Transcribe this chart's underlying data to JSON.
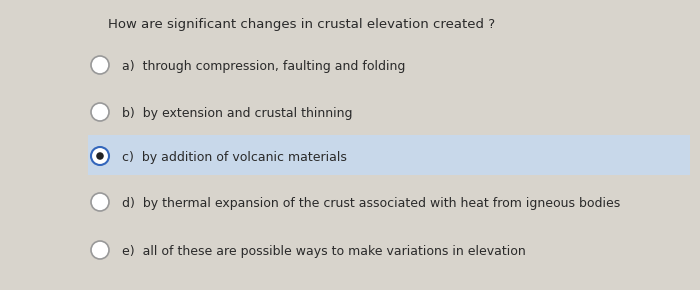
{
  "question": "How are significant changes in crustal elevation created ?",
  "options": [
    {
      "label": "a)  ",
      "text": "through compression, faulting and folding",
      "selected": false
    },
    {
      "label": "b)  ",
      "text": "by extension and crustal thinning",
      "selected": false
    },
    {
      "label": "c)  ",
      "text": "by addition of volcanic materials",
      "selected": true
    },
    {
      "label": "d)  ",
      "text": "by thermal expansion of the crust associated with heat from igneous bodies",
      "selected": false
    },
    {
      "label": "e)  ",
      "text": "all of these are possible ways to make variations in elevation",
      "selected": false
    }
  ],
  "bg_color": "#d8d4cc",
  "selected_bg": "#c8d8ea",
  "text_color": "#2a2a2a",
  "question_fontsize": 9.5,
  "option_fontsize": 9.0,
  "radio_color_unselected": "#999999",
  "radio_color_selected": "#3366bb",
  "radio_dot_color": "#222222",
  "radio_outer_selected": "#3366bb"
}
